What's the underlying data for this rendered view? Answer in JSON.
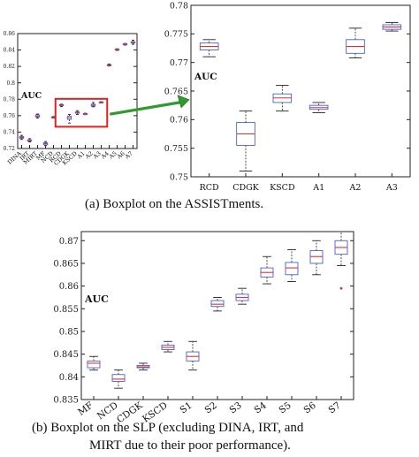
{
  "chart_data": [
    {
      "id": "assist_all",
      "type": "boxplot",
      "ylabel": "AUC",
      "ylim": [
        0.72,
        0.86
      ],
      "yticks": [
        "0.86",
        "0.84",
        "0.82",
        "0.8",
        "0.78",
        "0.76",
        "0.74",
        "0.72"
      ],
      "categories": [
        "DINA",
        "IRT",
        "MIRT",
        "MF",
        "NCD",
        "RCD",
        "CDGK",
        "KSCD",
        "A1",
        "A2",
        "A3",
        "A4",
        "A5",
        "A6",
        "A7"
      ],
      "boxes": [
        {
          "whislo": 0.731,
          "q1": 0.7325,
          "med": 0.7335,
          "q3": 0.7345,
          "whishi": 0.736
        },
        {
          "whislo": 0.728,
          "q1": 0.729,
          "med": 0.7295,
          "q3": 0.7305,
          "whishi": 0.732
        },
        {
          "whislo": 0.757,
          "q1": 0.7585,
          "med": 0.7595,
          "q3": 0.761,
          "whishi": 0.762
        },
        {
          "whislo": 0.7235,
          "q1": 0.7245,
          "med": 0.726,
          "q3": 0.727,
          "whishi": 0.7285
        },
        {
          "whislo": 0.757,
          "q1": 0.7575,
          "med": 0.758,
          "q3": 0.7585,
          "whishi": 0.759
        },
        {
          "whislo": 0.771,
          "q1": 0.7722,
          "med": 0.7728,
          "q3": 0.7734,
          "whishi": 0.774
        },
        {
          "whislo": 0.751,
          "q1": 0.7555,
          "med": 0.7575,
          "q3": 0.7595,
          "whishi": 0.7615
        },
        {
          "whislo": 0.7615,
          "q1": 0.763,
          "med": 0.7638,
          "q3": 0.7645,
          "whishi": 0.766
        },
        {
          "whislo": 0.7612,
          "q1": 0.7618,
          "med": 0.7621,
          "q3": 0.7625,
          "whishi": 0.763
        },
        {
          "whislo": 0.7708,
          "q1": 0.7716,
          "med": 0.7728,
          "q3": 0.774,
          "whishi": 0.776
        },
        {
          "whislo": 0.7755,
          "q1": 0.7758,
          "med": 0.7762,
          "q3": 0.7766,
          "whishi": 0.777
        },
        {
          "whislo": 0.8205,
          "q1": 0.821,
          "med": 0.8215,
          "q3": 0.822,
          "whishi": 0.823
        },
        {
          "whislo": 0.8395,
          "q1": 0.84,
          "med": 0.8405,
          "q3": 0.841,
          "whishi": 0.8415
        },
        {
          "whislo": 0.846,
          "q1": 0.8465,
          "med": 0.847,
          "q3": 0.8475,
          "whishi": 0.848
        },
        {
          "whislo": 0.847,
          "q1": 0.8485,
          "med": 0.8495,
          "q3": 0.85,
          "whishi": 0.852
        }
      ]
    },
    {
      "id": "assist_zoom",
      "type": "boxplot",
      "ylabel": "AUC",
      "ylim": [
        0.75,
        0.78
      ],
      "yticks": [
        "0.78",
        "0.775",
        "0.77",
        "0.765",
        "0.76",
        "0.755",
        "0.75"
      ],
      "categories": [
        "RCD",
        "CDGK",
        "KSCD",
        "A1",
        "A2",
        "A3"
      ],
      "boxes": [
        {
          "whislo": 0.771,
          "q1": 0.7722,
          "med": 0.7728,
          "q3": 0.7734,
          "whishi": 0.774
        },
        {
          "whislo": 0.751,
          "q1": 0.7555,
          "med": 0.7575,
          "q3": 0.7595,
          "whishi": 0.7615
        },
        {
          "whislo": 0.7615,
          "q1": 0.763,
          "med": 0.7638,
          "q3": 0.7645,
          "whishi": 0.766
        },
        {
          "whislo": 0.7612,
          "q1": 0.7618,
          "med": 0.7621,
          "q3": 0.7625,
          "whishi": 0.763
        },
        {
          "whislo": 0.7708,
          "q1": 0.7716,
          "med": 0.7728,
          "q3": 0.774,
          "whishi": 0.776
        },
        {
          "whislo": 0.7755,
          "q1": 0.7758,
          "med": 0.7762,
          "q3": 0.7766,
          "whishi": 0.777
        }
      ]
    },
    {
      "id": "slp",
      "type": "boxplot",
      "ylabel": "AUC",
      "ylim": [
        0.835,
        0.872
      ],
      "yticks": [
        "0.87",
        "0.865",
        "0.86",
        "0.855",
        "0.85",
        "0.845",
        "0.84",
        "0.835"
      ],
      "categories": [
        "MF",
        "NCD",
        "CDGK",
        "KSCD",
        "S1",
        "S2",
        "S3",
        "S4",
        "S5",
        "S6",
        "S7"
      ],
      "boxes": [
        {
          "whislo": 0.8415,
          "q1": 0.842,
          "med": 0.843,
          "q3": 0.8435,
          "whishi": 0.8445
        },
        {
          "whislo": 0.8375,
          "q1": 0.839,
          "med": 0.8395,
          "q3": 0.8405,
          "whishi": 0.8415
        },
        {
          "whislo": 0.8415,
          "q1": 0.842,
          "med": 0.8422,
          "q3": 0.8425,
          "whishi": 0.843
        },
        {
          "whislo": 0.8455,
          "q1": 0.846,
          "med": 0.8465,
          "q3": 0.847,
          "whishi": 0.8478
        },
        {
          "whislo": 0.8415,
          "q1": 0.8435,
          "med": 0.8445,
          "q3": 0.8455,
          "whishi": 0.8478
        },
        {
          "whislo": 0.8545,
          "q1": 0.8555,
          "med": 0.856,
          "q3": 0.8568,
          "whishi": 0.8575
        },
        {
          "whislo": 0.856,
          "q1": 0.8568,
          "med": 0.8575,
          "q3": 0.8582,
          "whishi": 0.8595
        },
        {
          "whislo": 0.8605,
          "q1": 0.862,
          "med": 0.863,
          "q3": 0.864,
          "whishi": 0.8665
        },
        {
          "whislo": 0.861,
          "q1": 0.8625,
          "med": 0.864,
          "q3": 0.8652,
          "whishi": 0.868
        },
        {
          "whislo": 0.8625,
          "q1": 0.865,
          "med": 0.8665,
          "q3": 0.8678,
          "whishi": 0.87
        },
        {
          "whislo": 0.8645,
          "q1": 0.867,
          "med": 0.8685,
          "q3": 0.87,
          "whishi": 0.872
        }
      ],
      "outliers": [
        {
          "category": "S7",
          "value": 0.8595
        }
      ]
    }
  ],
  "captions": {
    "a": "(a) Boxplot on the ASSISTments.",
    "b_line1": "(b) Boxplot on the SLP (excluding DINA, IRT, and",
    "b_line2": "MIRT due to their poor performance)."
  },
  "colors": {
    "box": "#4a5ed6",
    "median": "#e03030",
    "whisker": "#222222",
    "highlight": "#e02020",
    "arrow": "#2f9a2f",
    "outlier": "#e03030"
  }
}
